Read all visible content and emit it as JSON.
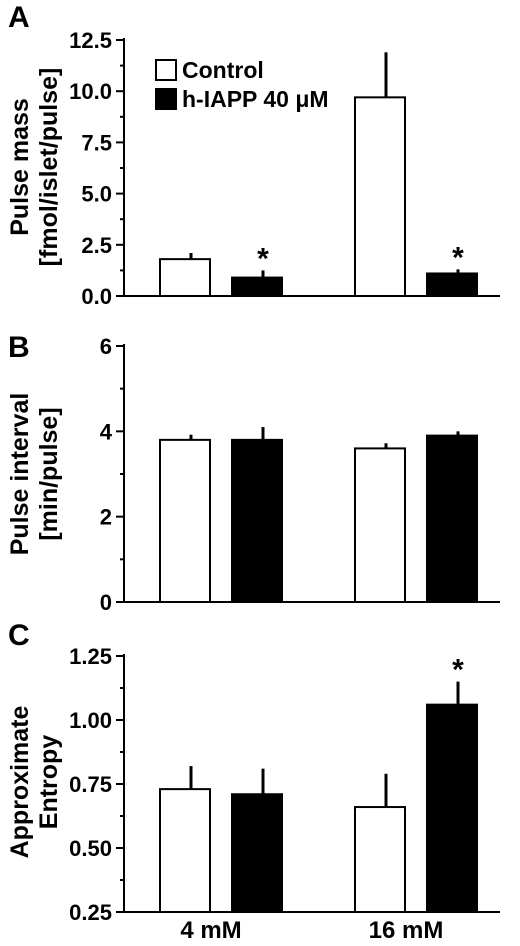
{
  "legend": {
    "control": "Control",
    "treated": "h-IAPP 40 μM"
  },
  "colors": {
    "control": "#ffffff",
    "treated": "#000000",
    "axis": "#000000"
  },
  "chart_data": [
    {
      "type": "bar",
      "panel": "A",
      "ylabel_line1": "Pulse mass",
      "ylabel_line2": "[fmol/islet/pulse]",
      "categories": [
        "4 mM",
        "16 mM"
      ],
      "ylim": [
        0,
        12.5
      ],
      "yticks": [
        "0.0",
        "2.5",
        "5.0",
        "7.5",
        "10.0",
        "12.5"
      ],
      "series": [
        {
          "name": "Control",
          "values": [
            1.8,
            9.7
          ],
          "errors": [
            0.3,
            2.2
          ],
          "sig": [
            "",
            ""
          ]
        },
        {
          "name": "h-IAPP 40 μM",
          "values": [
            0.9,
            1.1
          ],
          "errors": [
            0.35,
            0.2
          ],
          "sig": [
            "*",
            "*"
          ]
        }
      ],
      "legend_position": "top-left"
    },
    {
      "type": "bar",
      "panel": "B",
      "ylabel_line1": "Pulse interval",
      "ylabel_line2": "[min/pulse]",
      "categories": [
        "4 mM",
        "16 mM"
      ],
      "ylim": [
        0,
        6
      ],
      "yticks": [
        "0",
        "2",
        "4",
        "6"
      ],
      "series": [
        {
          "name": "Control",
          "values": [
            3.8,
            3.6
          ],
          "errors": [
            0.12,
            0.12
          ],
          "sig": [
            "",
            ""
          ]
        },
        {
          "name": "h-IAPP 40 μM",
          "values": [
            3.8,
            3.9
          ],
          "errors": [
            0.3,
            0.1
          ],
          "sig": [
            "",
            ""
          ]
        }
      ]
    },
    {
      "type": "bar",
      "panel": "C",
      "ylabel_line1": "Approximate",
      "ylabel_line2": "Entropy",
      "categories": [
        "4 mM",
        "16 mM"
      ],
      "ylim": [
        0.25,
        1.25
      ],
      "yticks": [
        "0.25",
        "0.50",
        "0.75",
        "1.00",
        "1.25"
      ],
      "series": [
        {
          "name": "Control",
          "values": [
            0.73,
            0.66
          ],
          "errors": [
            0.09,
            0.13
          ],
          "sig": [
            "",
            ""
          ]
        },
        {
          "name": "h-IAPP 40 μM",
          "values": [
            0.71,
            1.06
          ],
          "errors": [
            0.1,
            0.09
          ],
          "sig": [
            "",
            "*"
          ]
        }
      ]
    }
  ]
}
